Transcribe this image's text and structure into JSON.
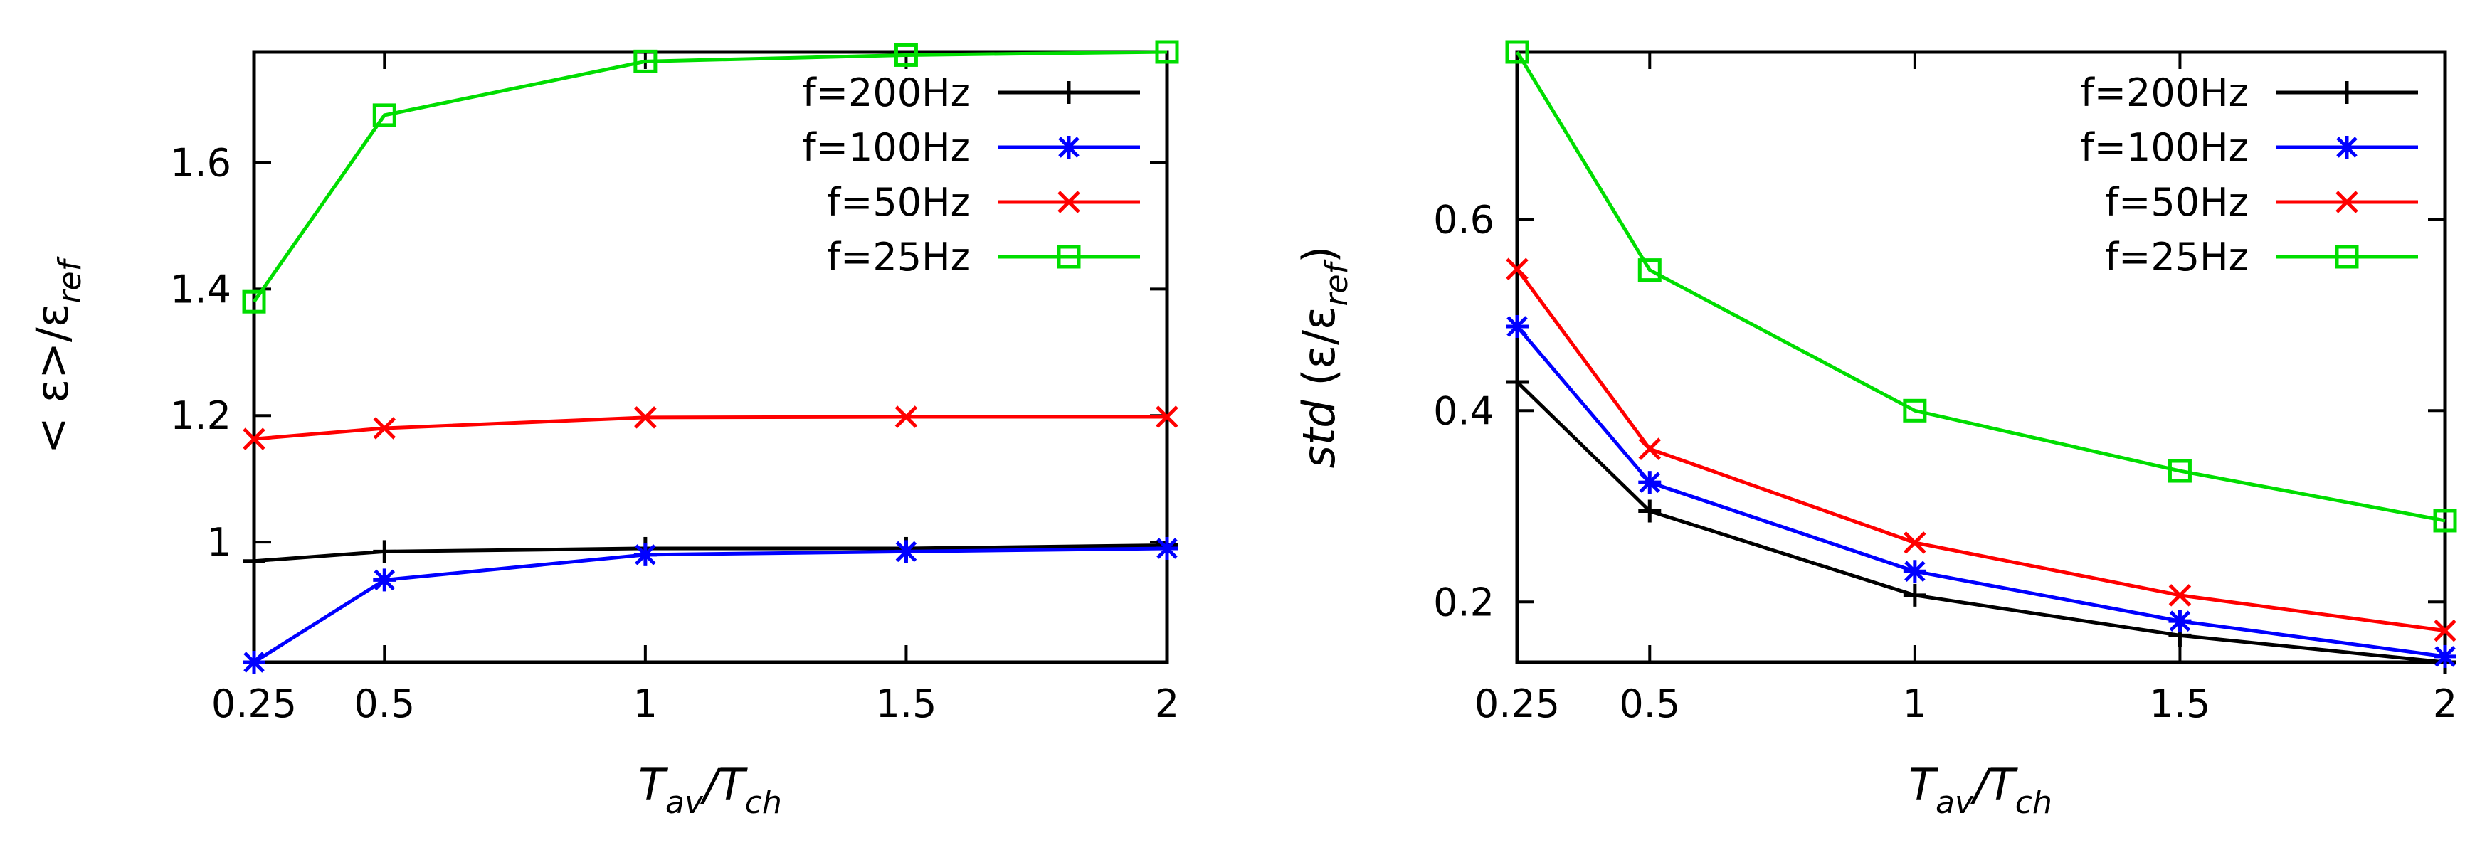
{
  "chart_data": [
    {
      "type": "line",
      "title": "",
      "xlabel": {
        "main": "T",
        "sub1": "av",
        "sep": "/T",
        "sub2": "ch"
      },
      "ylabel": {
        "part1": "< ε>/ε",
        "sub": "ref"
      },
      "x": [
        0.25,
        0.5,
        1,
        1.5,
        2
      ],
      "xticks": [
        0.25,
        0.5,
        1,
        1.5,
        2
      ],
      "xtick_labels": [
        "0.25",
        "0.5",
        "1",
        "1.5",
        "2"
      ],
      "yticks": [
        1,
        1.2,
        1.4,
        1.6
      ],
      "ytick_labels": [
        "1",
        "1.2",
        "1.4",
        "1.6"
      ],
      "xlim": [
        0.25,
        2
      ],
      "ylim": [
        0.81,
        1.775
      ],
      "legend_position": "top-right",
      "series": [
        {
          "name": "f=200Hz",
          "color": "#000000",
          "marker": "plus",
          "values": [
            0.97,
            0.985,
            0.99,
            0.99,
            0.995
          ]
        },
        {
          "name": "f=100Hz",
          "color": "#0000ff",
          "marker": "star",
          "values": [
            0.81,
            0.94,
            0.98,
            0.985,
            0.99
          ]
        },
        {
          "name": "f=50Hz",
          "color": "#ff0000",
          "marker": "cross",
          "values": [
            1.163,
            1.18,
            1.197,
            1.198,
            1.198
          ]
        },
        {
          "name": "f=25Hz",
          "color": "#00dd00",
          "marker": "square",
          "values": [
            1.38,
            1.675,
            1.76,
            1.77,
            1.775
          ]
        }
      ]
    },
    {
      "type": "line",
      "title": "",
      "xlabel": {
        "main": "T",
        "sub1": "av",
        "sep": "/T",
        "sub2": "ch"
      },
      "ylabel": {
        "part1": "std",
        "part2": " (ε/ε",
        "sub": "ref",
        "part3": ")"
      },
      "x": [
        0.25,
        0.5,
        1,
        1.5,
        2
      ],
      "xticks": [
        0.25,
        0.5,
        1,
        1.5,
        2
      ],
      "xtick_labels": [
        "0.25",
        "0.5",
        "1",
        "1.5",
        "2"
      ],
      "yticks": [
        0.2,
        0.4,
        0.6
      ],
      "ytick_labels": [
        "0.2",
        "0.4",
        "0.6"
      ],
      "xlim": [
        0.25,
        2
      ],
      "ylim": [
        0.137,
        0.775
      ],
      "legend_position": "top-right",
      "series": [
        {
          "name": "f=200Hz",
          "color": "#000000",
          "marker": "plus",
          "values": [
            0.43,
            0.295,
            0.207,
            0.165,
            0.137
          ]
        },
        {
          "name": "f=100Hz",
          "color": "#0000ff",
          "marker": "star",
          "values": [
            0.488,
            0.325,
            0.232,
            0.18,
            0.143
          ]
        },
        {
          "name": "f=50Hz",
          "color": "#ff0000",
          "marker": "cross",
          "values": [
            0.548,
            0.36,
            0.262,
            0.207,
            0.17
          ]
        },
        {
          "name": "f=25Hz",
          "color": "#00dd00",
          "marker": "square",
          "values": [
            0.775,
            0.547,
            0.4,
            0.337,
            0.285
          ]
        }
      ]
    }
  ]
}
